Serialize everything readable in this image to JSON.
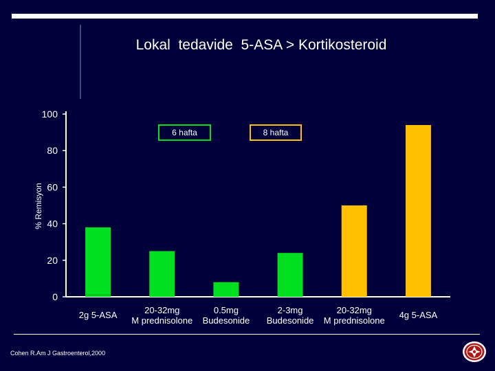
{
  "slide": {
    "title": "Lokal  tedavide  5-ASA > Kortikosteroid",
    "citation": "Cohen R.Am J Gastroenterol,2000"
  },
  "colors": {
    "background": "#00003a",
    "green": "#00e020",
    "gold": "#ffc000",
    "axis": "#ffffff"
  },
  "chart_data": {
    "type": "bar",
    "title": "",
    "xlabel": "",
    "ylabel": "% Remisyon",
    "ylim": [
      0,
      100
    ],
    "yticks": [
      0,
      20,
      40,
      60,
      80,
      100
    ],
    "categories": [
      [
        "2g 5-ASA"
      ],
      [
        "20-32mg",
        "M prednisolone"
      ],
      [
        "0.5mg",
        "Budesonide"
      ],
      [
        "2-3mg",
        "Budesonide"
      ],
      [
        "20-32mg",
        "M prednisolone"
      ],
      [
        "4g 5-ASA"
      ]
    ],
    "values": [
      38,
      25,
      8,
      24,
      50,
      94
    ],
    "series_index": [
      0,
      0,
      0,
      0,
      1,
      1
    ],
    "legend": [
      {
        "label": "6 hafta",
        "color": "#00e020"
      },
      {
        "label": "8 hafta",
        "color": "#ffc000"
      }
    ],
    "legend_position": "top"
  }
}
